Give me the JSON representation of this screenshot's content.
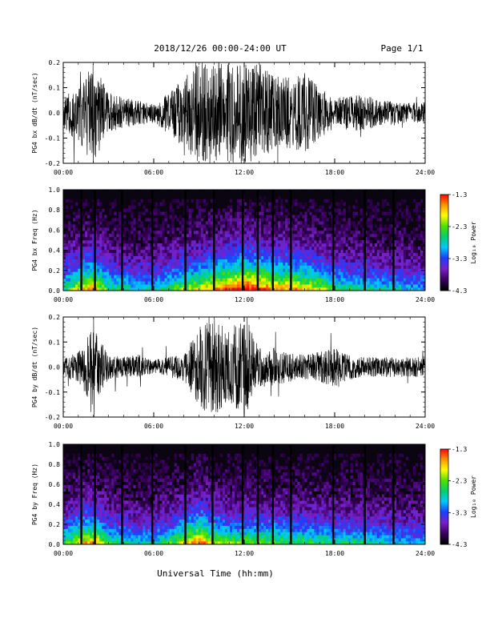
{
  "header": {
    "title": "2018/12/26  00:00-24:00 UT",
    "page": "Page 1/1"
  },
  "footer": {
    "xlabel": "Universal Time (hh:mm)"
  },
  "colors": {
    "trace": "#000000",
    "spectrogram_background": "#0b0512",
    "colormap": [
      "#000000",
      "#3a0060",
      "#7a20c8",
      "#1f3cff",
      "#00c8ff",
      "#00d070",
      "#50e000",
      "#ffff00",
      "#ff9000",
      "#ff0000"
    ]
  },
  "chart_data": [
    {
      "type": "line",
      "title": "",
      "ylabel": "PG4 bx dB/dt (nT/sec)",
      "xlabel": "",
      "xlim": [
        "00:00",
        "24:00"
      ],
      "ylim": [
        -0.2,
        0.2
      ],
      "x_ticks": [
        "00:00",
        "06:00",
        "12:00",
        "18:00",
        "24:00"
      ],
      "y_ticks": [
        "-0.2",
        "-0.1",
        "0.0",
        "0.1",
        "0.2"
      ],
      "x_hours": [
        0,
        1,
        2,
        3,
        4,
        5,
        6,
        7,
        8,
        9,
        10,
        11,
        12,
        13,
        14,
        15,
        16,
        17,
        18,
        19,
        20,
        21,
        22,
        23,
        24
      ],
      "amplitude": [
        0.06,
        0.12,
        0.2,
        0.08,
        0.06,
        0.05,
        0.04,
        0.08,
        0.14,
        0.2,
        0.2,
        0.2,
        0.2,
        0.2,
        0.15,
        0.14,
        0.16,
        0.1,
        0.06,
        0.07,
        0.07,
        0.05,
        0.05,
        0.04,
        0.04
      ],
      "grid": false
    },
    {
      "type": "heatmap",
      "title": "",
      "ylabel": "PG4 bx Freq (Hz)",
      "xlabel": "",
      "xlim": [
        "00:00",
        "24:00"
      ],
      "ylim": [
        0.0,
        1.0
      ],
      "x_ticks": [
        "00:00",
        "06:00",
        "12:00",
        "18:00",
        "24:00"
      ],
      "y_ticks": [
        "0.0",
        "0.2",
        "0.4",
        "0.6",
        "0.8",
        "1.0"
      ],
      "colorbar": {
        "label": "Log₁₀ Power",
        "ticks": [
          "-1.3",
          "-2.3",
          "-3.3",
          "-4.3"
        ],
        "range": [
          -4.3,
          -1.3
        ]
      },
      "x_hours": [
        0,
        1,
        2,
        3,
        4,
        5,
        6,
        7,
        8,
        9,
        10,
        11,
        12,
        13,
        14,
        15,
        16,
        17,
        18,
        19,
        20,
        21,
        22,
        23,
        24
      ],
      "activity": [
        0.4,
        0.6,
        0.7,
        0.45,
        0.4,
        0.35,
        0.35,
        0.45,
        0.55,
        0.6,
        0.7,
        0.8,
        0.85,
        0.8,
        0.7,
        0.7,
        0.65,
        0.6,
        0.45,
        0.4,
        0.4,
        0.35,
        0.35,
        0.3,
        0.3
      ],
      "data_gaps_hours": [
        1.2,
        2.1,
        3.9,
        5.9,
        8.1,
        10.0,
        11.9,
        12.9,
        13.9,
        15.1,
        17.9,
        20.0,
        21.9
      ],
      "grid": false
    },
    {
      "type": "line",
      "title": "",
      "ylabel": "PG4 by dB/dt (nT/sec)",
      "xlabel": "",
      "xlim": [
        "00:00",
        "24:00"
      ],
      "ylim": [
        -0.2,
        0.2
      ],
      "x_ticks": [
        "00:00",
        "06:00",
        "12:00",
        "18:00",
        "24:00"
      ],
      "y_ticks": [
        "-0.2",
        "-0.1",
        "0.0",
        "0.1",
        "0.2"
      ],
      "x_hours": [
        0,
        1,
        2,
        3,
        4,
        5,
        6,
        7,
        8,
        9,
        10,
        11,
        12,
        13,
        14,
        15,
        16,
        17,
        18,
        19,
        20,
        21,
        22,
        23,
        24
      ],
      "amplitude": [
        0.04,
        0.06,
        0.16,
        0.05,
        0.04,
        0.05,
        0.03,
        0.04,
        0.06,
        0.16,
        0.2,
        0.14,
        0.2,
        0.08,
        0.08,
        0.06,
        0.05,
        0.06,
        0.08,
        0.05,
        0.04,
        0.04,
        0.04,
        0.04,
        0.04
      ],
      "grid": false
    },
    {
      "type": "heatmap",
      "title": "",
      "ylabel": "PG4 by Freq (Hz)",
      "xlabel": "",
      "xlim": [
        "00:00",
        "24:00"
      ],
      "ylim": [
        0.0,
        1.0
      ],
      "x_ticks": [
        "00:00",
        "06:00",
        "12:00",
        "18:00",
        "24:00"
      ],
      "y_ticks": [
        "0.0",
        "0.2",
        "0.4",
        "0.6",
        "0.8",
        "1.0"
      ],
      "colorbar": {
        "label": "Log₁₀ Power",
        "ticks": [
          "-1.3",
          "-2.3",
          "-3.3",
          "-4.3"
        ],
        "range": [
          -4.3,
          -1.3
        ]
      },
      "x_hours": [
        0,
        1,
        2,
        3,
        4,
        5,
        6,
        7,
        8,
        9,
        10,
        11,
        12,
        13,
        14,
        15,
        16,
        17,
        18,
        19,
        20,
        21,
        22,
        23,
        24
      ],
      "activity": [
        0.4,
        0.6,
        0.7,
        0.45,
        0.4,
        0.35,
        0.35,
        0.45,
        0.6,
        0.75,
        0.6,
        0.5,
        0.5,
        0.5,
        0.5,
        0.45,
        0.45,
        0.45,
        0.4,
        0.4,
        0.4,
        0.35,
        0.35,
        0.3,
        0.3
      ],
      "data_gaps_hours": [
        1.2,
        2.1,
        3.9,
        5.9,
        8.1,
        9.9,
        11.9,
        12.9,
        13.9,
        15.1,
        17.9,
        20.0,
        21.9
      ],
      "grid": false
    }
  ]
}
